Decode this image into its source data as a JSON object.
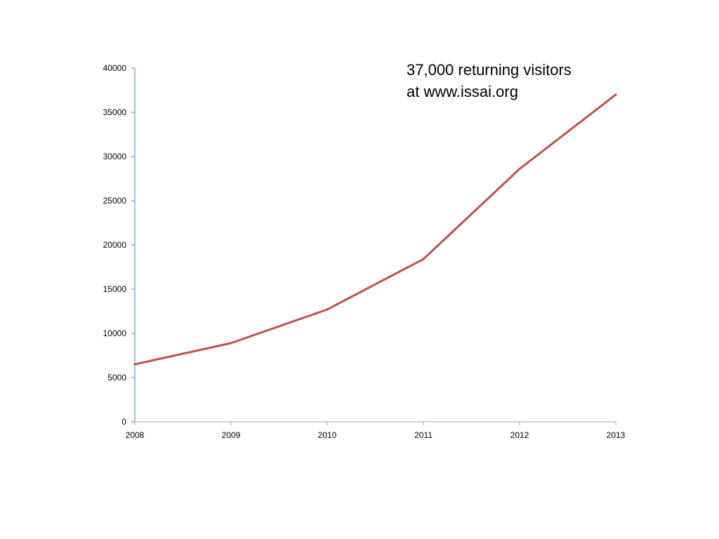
{
  "chart_data": {
    "type": "line",
    "title": "",
    "xlabel": "",
    "ylabel": "",
    "x": [
      "2008",
      "2009",
      "2010",
      "2011",
      "2012",
      "2013"
    ],
    "series": [
      {
        "values": [
          6500,
          8900,
          12700,
          18400,
          28600,
          37000
        ]
      }
    ],
    "ylim": [
      0,
      40000
    ],
    "yticks": [
      0,
      5000,
      10000,
      15000,
      20000,
      25000,
      30000,
      35000,
      40000
    ],
    "grid": false,
    "legend": "none",
    "annotation": {
      "line1": "37,000 returning visitors",
      "line2": "at www.issai.org"
    }
  },
  "colors": {
    "series_line": "#c0504d",
    "y_axis": "#4f81bd",
    "x_axis": "#a6a6a6",
    "tick_text": "#000000"
  }
}
